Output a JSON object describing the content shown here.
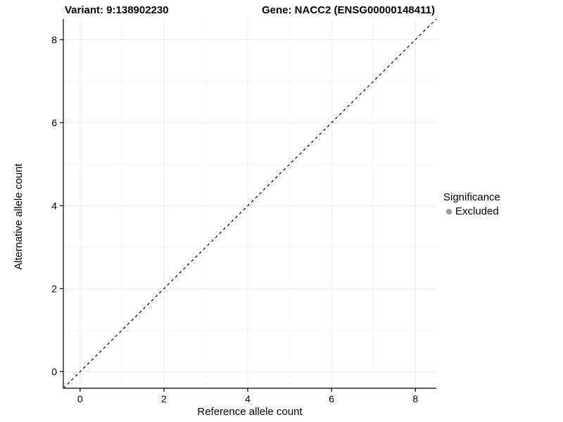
{
  "titles": {
    "variant": "Variant: 9:138902230",
    "gene": "Gene: NACC2 (ENSG00000148411)"
  },
  "axes": {
    "x_label": "Reference allele count",
    "y_label": "Alternative allele count"
  },
  "legend": {
    "title": "Significance",
    "items": [
      {
        "label": "Excluded",
        "color": "#999999"
      }
    ]
  },
  "colors": {
    "background": "#ffffff",
    "axis_line": "#000000",
    "major_grid": "#ebebeb",
    "minor_grid": "#f5f5f5",
    "reference_line": "#000000",
    "text": "#000000"
  },
  "chart_data": {
    "type": "scatter",
    "title": "Variant: 9:138902230 | Gene: NACC2 (ENSG00000148411)",
    "xlabel": "Reference allele count",
    "ylabel": "Alternative allele count",
    "xlim": [
      -0.4,
      8.5
    ],
    "ylim": [
      -0.4,
      8.5
    ],
    "xticks": [
      0,
      2,
      4,
      6,
      8
    ],
    "yticks": [
      0,
      2,
      4,
      6,
      8
    ],
    "minor_xticks": [
      1,
      3,
      5,
      7
    ],
    "minor_yticks": [
      1,
      3,
      5,
      7
    ],
    "grid": true,
    "points": [],
    "series": [],
    "reference_line": {
      "type": "identity",
      "equation": "y = x",
      "style": "dashed",
      "color": "#000000"
    },
    "legend_position": "right",
    "legend_title": "Significance",
    "legend_entries": [
      "Excluded"
    ]
  }
}
